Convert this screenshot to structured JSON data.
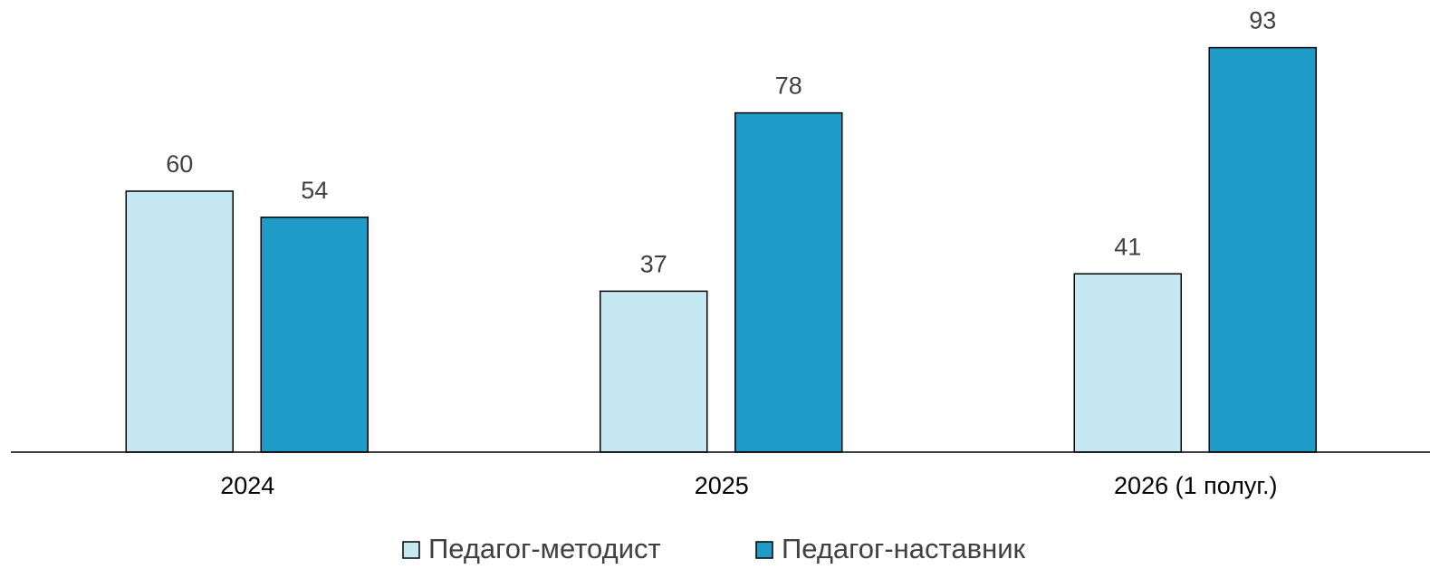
{
  "chart_data": {
    "type": "bar",
    "categories": [
      "2024",
      "2025",
      "2026 (1 полуг.)"
    ],
    "series": [
      {
        "name": "Педагог-методист",
        "color": "#c5e8f3",
        "values": [
          60,
          37,
          41
        ]
      },
      {
        "name": "Педагог-наставник",
        "color": "#1f9bc8",
        "values": [
          54,
          78,
          93
        ]
      }
    ]
  }
}
